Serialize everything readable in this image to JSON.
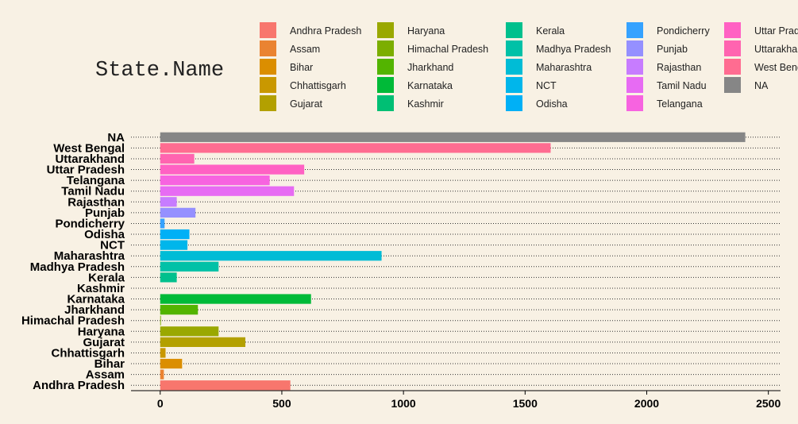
{
  "chart_data": {
    "type": "bar",
    "orientation": "horizontal",
    "legend_title": "State.Name",
    "legend_position": "top",
    "categories": [
      "Andhra Pradesh",
      "Assam",
      "Bihar",
      "Chhattisgarh",
      "Gujarat",
      "Haryana",
      "Himachal Pradesh",
      "Jharkhand",
      "Karnataka",
      "Kashmir",
      "Kerala",
      "Madhya Pradesh",
      "Maharashtra",
      "NCT",
      "Odisha",
      "Pondicherry",
      "Punjab",
      "Rajasthan",
      "Tamil Nadu",
      "Telangana",
      "Uttar Pradesh",
      "Uttarakhand",
      "West Bengal",
      "NA"
    ],
    "values": [
      535,
      15,
      90,
      22,
      350,
      240,
      3,
      155,
      620,
      0,
      68,
      240,
      910,
      112,
      120,
      18,
      145,
      68,
      550,
      450,
      592,
      140,
      1605,
      2405
    ],
    "colors": [
      "#F8766D",
      "#EA8331",
      "#DB8E00",
      "#C99800",
      "#B3A000",
      "#9AA800",
      "#7CAE00",
      "#53B400",
      "#00BA38",
      "#00BF74",
      "#00C08D",
      "#00C1A7",
      "#00BCD6",
      "#00B6EB",
      "#00B0F6",
      "#35A2FF",
      "#9590FF",
      "#C77CFF",
      "#E76BF3",
      "#F763E0",
      "#FF61C3",
      "#FF64B0",
      "#FF6C91",
      "#868686"
    ],
    "xlim": [
      -120,
      2550
    ],
    "xticks": [
      0,
      500,
      1000,
      1500,
      2000,
      2500
    ],
    "xlabel": "",
    "ylabel": "",
    "grid": "horizontal-dotted"
  }
}
